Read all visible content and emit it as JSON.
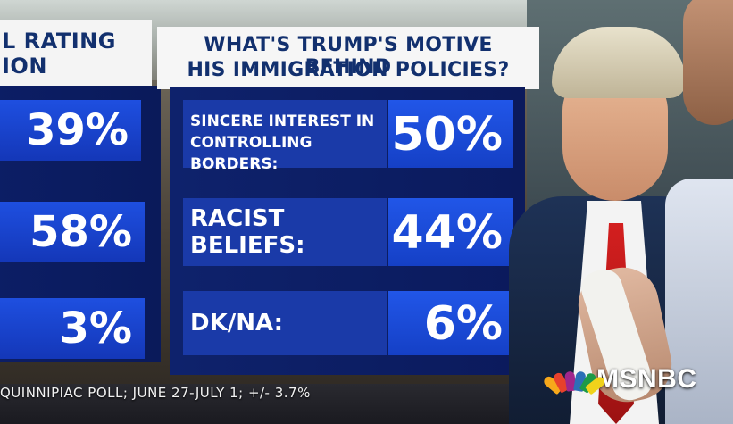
{
  "left_panel": {
    "header_lines": [
      "L RATING",
      "ION"
    ],
    "values": [
      "39%",
      "58%",
      "3%"
    ]
  },
  "main_panel": {
    "header_lines": [
      "WHAT'S TRUMP'S MOTIVE BEHIND",
      "HIS IMMIGRATION POLICIES?"
    ],
    "rows": [
      {
        "label_lines": [
          "SINCERE INTEREST IN",
          "CONTROLLING BORDERS:"
        ],
        "value": "50%"
      },
      {
        "label_lines": [
          "RACIST",
          "BELIEFS:"
        ],
        "value": "44%"
      },
      {
        "label_lines": [
          "DK/NA:"
        ],
        "value": "6%"
      }
    ]
  },
  "footer": {
    "source": "QUINNIPIAC POLL; JUNE 27-JULY 1; +/- 3.7%"
  },
  "branding": {
    "logo_text": "MSNBC",
    "peacock_colors": [
      "#f7a81b",
      "#e8412c",
      "#a0268b",
      "#2c6fb7",
      "#1d9a48",
      "#f0d21b"
    ]
  }
}
